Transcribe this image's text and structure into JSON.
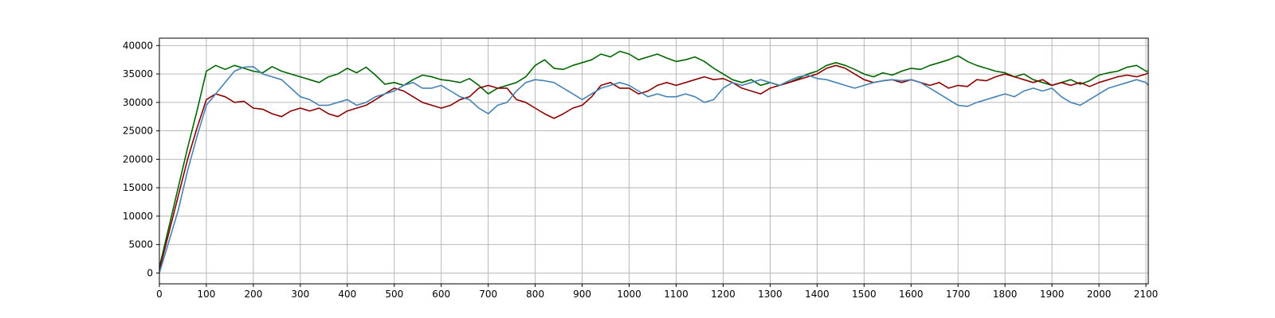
{
  "chart_data": {
    "type": "line",
    "title": "",
    "xlabel": "",
    "ylabel": "",
    "xlim": [
      0,
      2105
    ],
    "ylim": [
      -1900,
      41300
    ],
    "grid": true,
    "xticks": [
      0,
      100,
      200,
      300,
      400,
      500,
      600,
      700,
      800,
      900,
      1000,
      1100,
      1200,
      1300,
      1400,
      1500,
      1600,
      1700,
      1800,
      1900,
      2000,
      2100
    ],
    "yticks": [
      0,
      5000,
      10000,
      15000,
      20000,
      25000,
      30000,
      35000,
      40000
    ],
    "series": [
      {
        "color": "#006400",
        "x": [
          0,
          20,
          40,
          60,
          80,
          100,
          120,
          140,
          160,
          180,
          200,
          220,
          240,
          260,
          280,
          300,
          320,
          340,
          360,
          380,
          400,
          420,
          440,
          460,
          480,
          500,
          520,
          540,
          560,
          580,
          600,
          620,
          640,
          660,
          680,
          700,
          720,
          740,
          760,
          780,
          800,
          820,
          840,
          860,
          880,
          900,
          920,
          940,
          960,
          980,
          1000,
          1020,
          1040,
          1060,
          1080,
          1100,
          1120,
          1140,
          1160,
          1180,
          1200,
          1220,
          1240,
          1260,
          1280,
          1300,
          1320,
          1340,
          1360,
          1380,
          1400,
          1420,
          1440,
          1460,
          1480,
          1500,
          1520,
          1540,
          1560,
          1580,
          1600,
          1620,
          1640,
          1660,
          1680,
          1700,
          1720,
          1740,
          1760,
          1780,
          1800,
          1820,
          1840,
          1860,
          1880,
          1900,
          1920,
          1940,
          1960,
          1980,
          2000,
          2020,
          2040,
          2060,
          2080,
          2100,
          2105
        ],
        "y": [
          1000,
          8000,
          15000,
          22000,
          28500,
          35500,
          36500,
          35800,
          36500,
          36000,
          35500,
          35200,
          36300,
          35500,
          35000,
          34500,
          34000,
          33500,
          34500,
          35000,
          36000,
          35200,
          36200,
          34800,
          33200,
          33500,
          33000,
          34000,
          34800,
          34500,
          34000,
          33800,
          33500,
          34200,
          33000,
          31500,
          32500,
          33000,
          33500,
          34500,
          36500,
          37500,
          36000,
          35800,
          36500,
          37000,
          37500,
          38500,
          38000,
          39000,
          38500,
          37500,
          38000,
          38500,
          37800,
          37200,
          37500,
          38000,
          37200,
          36000,
          35000,
          34000,
          33500,
          34000,
          33000,
          33500,
          33000,
          33500,
          34200,
          35000,
          35500,
          36500,
          37000,
          36500,
          35800,
          35000,
          34500,
          35200,
          34800,
          35500,
          36000,
          35800,
          36500,
          37000,
          37500,
          38200,
          37200,
          36500,
          36000,
          35500,
          35200,
          34500,
          35000,
          34000,
          33500,
          33000,
          33500,
          34000,
          33200,
          33800,
          34800,
          35200,
          35500,
          36200,
          36500,
          35500,
          35500
        ]
      },
      {
        "color": "#8b0000",
        "x": [
          0,
          20,
          40,
          60,
          80,
          100,
          120,
          140,
          160,
          180,
          200,
          220,
          240,
          260,
          280,
          300,
          320,
          340,
          360,
          380,
          400,
          420,
          440,
          460,
          480,
          500,
          520,
          540,
          560,
          580,
          600,
          620,
          640,
          660,
          680,
          700,
          720,
          740,
          760,
          780,
          800,
          820,
          840,
          860,
          880,
          900,
          920,
          940,
          960,
          980,
          1000,
          1020,
          1040,
          1060,
          1080,
          1100,
          1120,
          1140,
          1160,
          1180,
          1200,
          1220,
          1240,
          1260,
          1280,
          1300,
          1320,
          1340,
          1360,
          1380,
          1400,
          1420,
          1440,
          1460,
          1480,
          1500,
          1520,
          1540,
          1560,
          1580,
          1600,
          1620,
          1640,
          1660,
          1680,
          1700,
          1720,
          1740,
          1760,
          1780,
          1800,
          1820,
          1840,
          1860,
          1880,
          1900,
          1920,
          1940,
          1960,
          1980,
          2000,
          2020,
          2040,
          2060,
          2080,
          2100,
          2105
        ],
        "y": [
          500,
          7000,
          13500,
          20000,
          25500,
          30500,
          31500,
          31000,
          30000,
          30200,
          29000,
          28800,
          28000,
          27500,
          28500,
          29000,
          28500,
          29000,
          28000,
          27500,
          28500,
          29000,
          29500,
          30500,
          31500,
          32500,
          32000,
          31000,
          30000,
          29500,
          29000,
          29500,
          30500,
          31000,
          32500,
          33000,
          32500,
          32500,
          30500,
          30000,
          29000,
          28000,
          27200,
          28000,
          29000,
          29500,
          31000,
          33000,
          33500,
          32500,
          32500,
          31500,
          32000,
          33000,
          33500,
          33000,
          33500,
          34000,
          34500,
          34000,
          34200,
          33500,
          32500,
          32000,
          31500,
          32500,
          33000,
          33500,
          34000,
          34500,
          35000,
          36000,
          36500,
          36000,
          35000,
          34000,
          33500,
          33800,
          34000,
          33500,
          34000,
          33500,
          33000,
          33500,
          32500,
          33000,
          32800,
          34000,
          33800,
          34500,
          35000,
          34500,
          34000,
          33500,
          34000,
          33000,
          33500,
          33000,
          33500,
          32800,
          33500,
          34000,
          34500,
          34800,
          34500,
          35000,
          35200
        ]
      },
      {
        "color": "#4682b4",
        "x": [
          0,
          20,
          40,
          60,
          80,
          100,
          120,
          140,
          160,
          180,
          200,
          220,
          240,
          260,
          280,
          300,
          320,
          340,
          360,
          380,
          400,
          420,
          440,
          460,
          480,
          500,
          520,
          540,
          560,
          580,
          600,
          620,
          640,
          660,
          680,
          700,
          720,
          740,
          760,
          780,
          800,
          820,
          840,
          860,
          880,
          900,
          920,
          940,
          960,
          980,
          1000,
          1020,
          1040,
          1060,
          1080,
          1100,
          1120,
          1140,
          1160,
          1180,
          1200,
          1220,
          1240,
          1260,
          1280,
          1300,
          1320,
          1340,
          1360,
          1380,
          1400,
          1420,
          1440,
          1460,
          1480,
          1500,
          1520,
          1540,
          1560,
          1580,
          1600,
          1620,
          1640,
          1660,
          1680,
          1700,
          1720,
          1740,
          1760,
          1780,
          1800,
          1820,
          1840,
          1860,
          1880,
          1900,
          1920,
          1940,
          1960,
          1980,
          2000,
          2020,
          2040,
          2060,
          2080,
          2100,
          2105
        ],
        "y": [
          0,
          5500,
          11000,
          18000,
          24000,
          29500,
          31500,
          33500,
          35500,
          36200,
          36300,
          35000,
          34500,
          34000,
          32500,
          31000,
          30500,
          29500,
          29500,
          30000,
          30500,
          29500,
          30000,
          31000,
          31500,
          32000,
          33000,
          33500,
          32500,
          32500,
          33000,
          32000,
          31000,
          30500,
          29000,
          28000,
          29500,
          30000,
          32000,
          33500,
          34000,
          33800,
          33500,
          32500,
          31500,
          30500,
          31500,
          32500,
          33000,
          33500,
          33000,
          32000,
          31000,
          31500,
          31000,
          31000,
          31500,
          31000,
          30000,
          30500,
          32500,
          33500,
          33000,
          33500,
          34000,
          33500,
          33000,
          33800,
          34500,
          34800,
          34200,
          34000,
          33500,
          33000,
          32500,
          33000,
          33500,
          33800,
          34000,
          33800,
          34000,
          33500,
          32500,
          31500,
          30500,
          29500,
          29300,
          30000,
          30500,
          31000,
          31500,
          31000,
          32000,
          32500,
          32000,
          32500,
          31000,
          30000,
          29500,
          30500,
          31500,
          32500,
          33000,
          33500,
          34000,
          33500,
          33000
        ]
      }
    ]
  }
}
